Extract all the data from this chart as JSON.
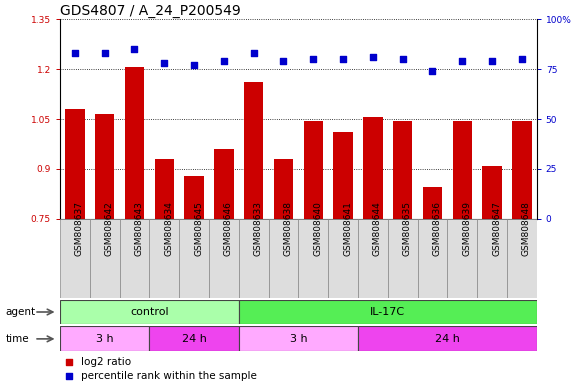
{
  "title": "GDS4807 / A_24_P200549",
  "samples": [
    "GSM808637",
    "GSM808642",
    "GSM808643",
    "GSM808634",
    "GSM808645",
    "GSM808646",
    "GSM808633",
    "GSM808638",
    "GSM808640",
    "GSM808641",
    "GSM808644",
    "GSM808635",
    "GSM808636",
    "GSM808639",
    "GSM808647",
    "GSM808648"
  ],
  "log2_ratio": [
    1.08,
    1.065,
    1.205,
    0.93,
    0.88,
    0.96,
    1.16,
    0.93,
    1.045,
    1.01,
    1.055,
    1.045,
    0.845,
    1.045,
    0.91,
    1.045
  ],
  "percentile_rank": [
    83,
    83,
    85,
    78,
    77,
    79,
    83,
    79,
    80,
    80,
    81,
    80,
    74,
    79,
    79,
    80
  ],
  "bar_color": "#cc0000",
  "dot_color": "#0000cc",
  "ylim_left": [
    0.75,
    1.35
  ],
  "ylim_right": [
    0,
    100
  ],
  "yticks_left": [
    0.75,
    0.9,
    1.05,
    1.2,
    1.35
  ],
  "yticks_right": [
    0,
    25,
    50,
    75,
    100
  ],
  "agent_groups": [
    {
      "label": "control",
      "start": 0,
      "end": 6,
      "color": "#aaffaa"
    },
    {
      "label": "IL-17C",
      "start": 6,
      "end": 16,
      "color": "#55ee55"
    }
  ],
  "time_groups": [
    {
      "label": "3 h",
      "start": 0,
      "end": 3,
      "color": "#ffaaff"
    },
    {
      "label": "24 h",
      "start": 3,
      "end": 6,
      "color": "#ee44ee"
    },
    {
      "label": "3 h",
      "start": 6,
      "end": 10,
      "color": "#ffaaff"
    },
    {
      "label": "24 h",
      "start": 10,
      "end": 16,
      "color": "#ee44ee"
    }
  ],
  "legend_bar_color": "#cc0000",
  "legend_dot_color": "#0000cc",
  "plot_bg": "#ffffff",
  "title_fontsize": 10,
  "tick_fontsize": 6.5,
  "label_fontsize": 7.5,
  "annot_fontsize": 8
}
